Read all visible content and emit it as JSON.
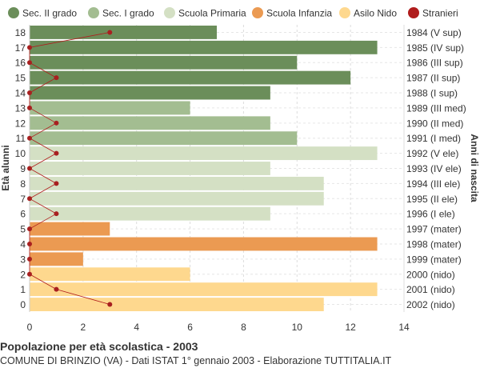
{
  "title": "Popolazione per età scolastica - 2003",
  "subtitle": "COMUNE DI BRINZIO (VA) - Dati ISTAT 1° gennaio 2003 - Elaborazione TUTTITALIA.IT",
  "colors": {
    "sec_ii_grado": "#6b8e5a",
    "sec_i_grado": "#a3bd91",
    "scuola_primaria": "#d4e0c4",
    "scuola_infanzia": "#eb9a52",
    "asilo_nido": "#fed88e",
    "stranieri": "#b01c1c"
  },
  "chart_data": {
    "type": "bar",
    "orientation": "horizontal",
    "ylabel": "Età alunni",
    "ylabel_right": "Anni di nascita",
    "xlim": [
      0,
      14
    ],
    "x_ticks": [
      "0",
      "2",
      "4",
      "6",
      "8",
      "10",
      "12",
      "14"
    ],
    "grid": true,
    "legend_position": "top",
    "legend": [
      {
        "label": "Sec. II grado",
        "color": "#6b8e5a"
      },
      {
        "label": "Sec. I grado",
        "color": "#a3bd91"
      },
      {
        "label": "Scuola Primaria",
        "color": "#d4e0c4"
      },
      {
        "label": "Scuola Infanzia",
        "color": "#eb9a52"
      },
      {
        "label": "Asilo Nido",
        "color": "#fed88e"
      },
      {
        "label": "Stranieri",
        "color": "#b01c1c"
      }
    ],
    "rows": [
      {
        "age": "18",
        "birth": "1984 (V sup)",
        "value": 7,
        "stranieri": 3,
        "color": "#6b8e5a"
      },
      {
        "age": "17",
        "birth": "1985 (IV sup)",
        "value": 13,
        "stranieri": 0,
        "color": "#6b8e5a"
      },
      {
        "age": "16",
        "birth": "1986 (III sup)",
        "value": 10,
        "stranieri": 0,
        "color": "#6b8e5a"
      },
      {
        "age": "15",
        "birth": "1987 (II sup)",
        "value": 12,
        "stranieri": 1,
        "color": "#6b8e5a"
      },
      {
        "age": "14",
        "birth": "1988 (I sup)",
        "value": 9,
        "stranieri": 0,
        "color": "#6b8e5a"
      },
      {
        "age": "13",
        "birth": "1989 (III med)",
        "value": 6,
        "stranieri": 0,
        "color": "#a3bd91"
      },
      {
        "age": "12",
        "birth": "1990 (II med)",
        "value": 9,
        "stranieri": 1,
        "color": "#a3bd91"
      },
      {
        "age": "11",
        "birth": "1991 (I med)",
        "value": 10,
        "stranieri": 0,
        "color": "#a3bd91"
      },
      {
        "age": "10",
        "birth": "1992 (V ele)",
        "value": 13,
        "stranieri": 1,
        "color": "#d4e0c4"
      },
      {
        "age": "9",
        "birth": "1993 (IV ele)",
        "value": 9,
        "stranieri": 0,
        "color": "#d4e0c4"
      },
      {
        "age": "8",
        "birth": "1994 (III ele)",
        "value": 11,
        "stranieri": 1,
        "color": "#d4e0c4"
      },
      {
        "age": "7",
        "birth": "1995 (II ele)",
        "value": 11,
        "stranieri": 0,
        "color": "#d4e0c4"
      },
      {
        "age": "6",
        "birth": "1996 (I ele)",
        "value": 9,
        "stranieri": 1,
        "color": "#d4e0c4"
      },
      {
        "age": "5",
        "birth": "1997 (mater)",
        "value": 3,
        "stranieri": 0,
        "color": "#eb9a52"
      },
      {
        "age": "4",
        "birth": "1998 (mater)",
        "value": 13,
        "stranieri": 0,
        "color": "#eb9a52"
      },
      {
        "age": "3",
        "birth": "1999 (mater)",
        "value": 2,
        "stranieri": 0,
        "color": "#eb9a52"
      },
      {
        "age": "2",
        "birth": "2000 (nido)",
        "value": 6,
        "stranieri": 0,
        "color": "#fed88e"
      },
      {
        "age": "1",
        "birth": "2001 (nido)",
        "value": 13,
        "stranieri": 1,
        "color": "#fed88e"
      },
      {
        "age": "0",
        "birth": "2002 (nido)",
        "value": 11,
        "stranieri": 3,
        "color": "#fed88e"
      }
    ]
  }
}
